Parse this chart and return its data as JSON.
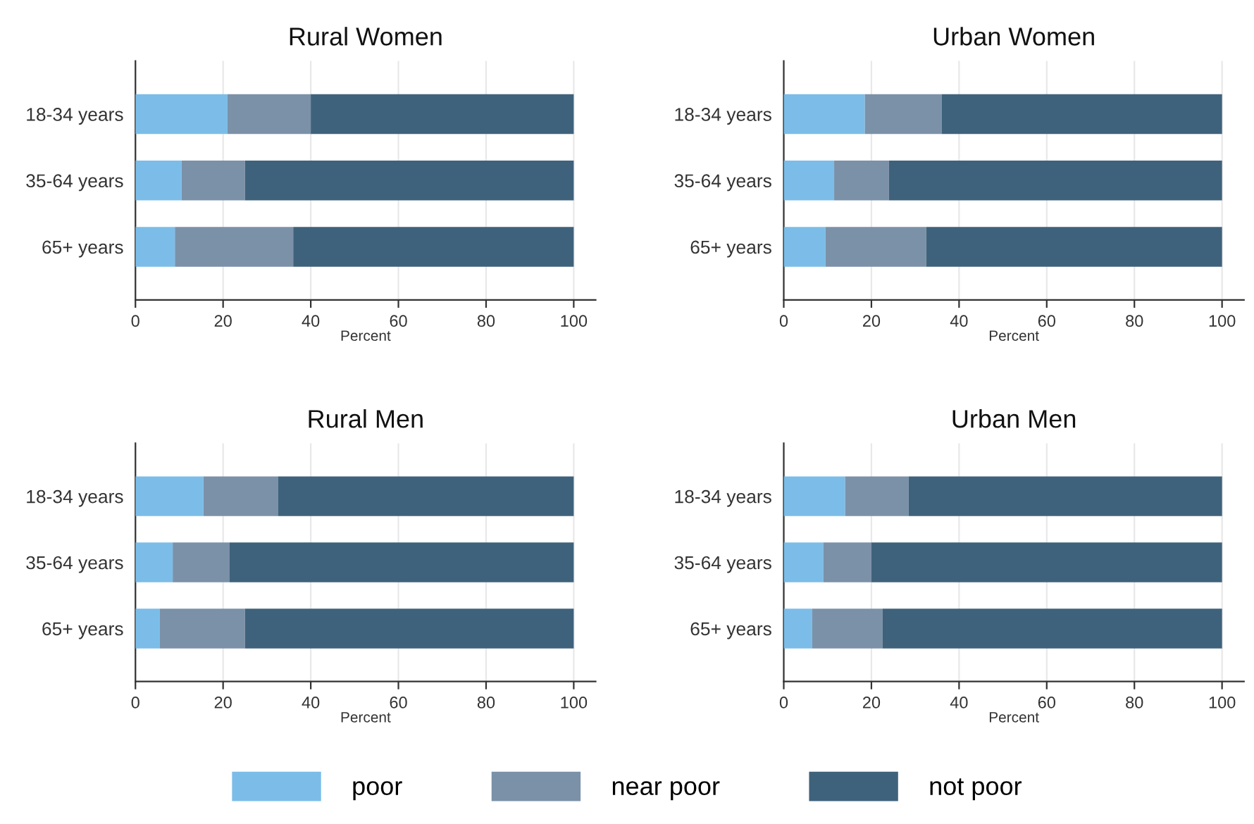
{
  "chart_data": [
    {
      "type": "bar",
      "orientation": "horizontal",
      "stacked": true,
      "title": "Rural Women",
      "xlabel": "Percent",
      "categories": [
        "18-34 years",
        "35-64 years",
        "65+ years"
      ],
      "xlim": [
        0,
        105
      ],
      "xticks": [
        0,
        20,
        40,
        60,
        80,
        100
      ],
      "grid": "x",
      "legend": "bottom",
      "series": [
        {
          "name": "poor",
          "color": "#7bbde8",
          "values": [
            21,
            10.5,
            9
          ]
        },
        {
          "name": "near poor",
          "color": "#7b91a8",
          "values": [
            19,
            14.5,
            27
          ]
        },
        {
          "name": "not poor",
          "color": "#3f627c",
          "values": [
            60,
            75,
            64
          ]
        }
      ]
    },
    {
      "type": "bar",
      "orientation": "horizontal",
      "stacked": true,
      "title": "Urban Women",
      "xlabel": "Percent",
      "categories": [
        "18-34 years",
        "35-64 years",
        "65+ years"
      ],
      "xlim": [
        0,
        105
      ],
      "xticks": [
        0,
        20,
        40,
        60,
        80,
        100
      ],
      "grid": "x",
      "series": [
        {
          "color": "#7bbde8",
          "values": [
            18.5,
            11.5,
            9.5
          ]
        },
        {
          "color": "#7b91a8",
          "values": [
            17.5,
            12.5,
            23
          ]
        },
        {
          "color": "#3f627c",
          "values": [
            64,
            76,
            67.5
          ]
        }
      ]
    },
    {
      "type": "bar",
      "orientation": "horizontal",
      "stacked": true,
      "title": "Rural Men",
      "xlabel": "Percent",
      "categories": [
        "18-34 years",
        "35-64 years",
        "65+ years"
      ],
      "xlim": [
        0,
        105
      ],
      "xticks": [
        0,
        20,
        40,
        60,
        80,
        100
      ],
      "grid": "x",
      "series": [
        {
          "color": "#7bbde8",
          "values": [
            15.5,
            8.5,
            5.5
          ]
        },
        {
          "color": "#7b91a8",
          "values": [
            17,
            13,
            19.5
          ]
        },
        {
          "color": "#3f627c",
          "values": [
            67.5,
            78.5,
            75
          ]
        }
      ]
    },
    {
      "type": "bar",
      "orientation": "horizontal",
      "stacked": true,
      "title": "Urban Men",
      "xlabel": "Percent",
      "categories": [
        "18-34 years",
        "35-64 years",
        "65+ years"
      ],
      "xlim": [
        0,
        105
      ],
      "xticks": [
        0,
        20,
        40,
        60,
        80,
        100
      ],
      "grid": "x",
      "series": [
        {
          "color": "#7bbde8",
          "values": [
            14,
            9,
            6.5
          ]
        },
        {
          "color": "#7b91a8",
          "values": [
            14.5,
            11,
            16
          ]
        },
        {
          "color": "#3f627c",
          "values": [
            71.5,
            80,
            77.5
          ]
        }
      ]
    }
  ]
}
